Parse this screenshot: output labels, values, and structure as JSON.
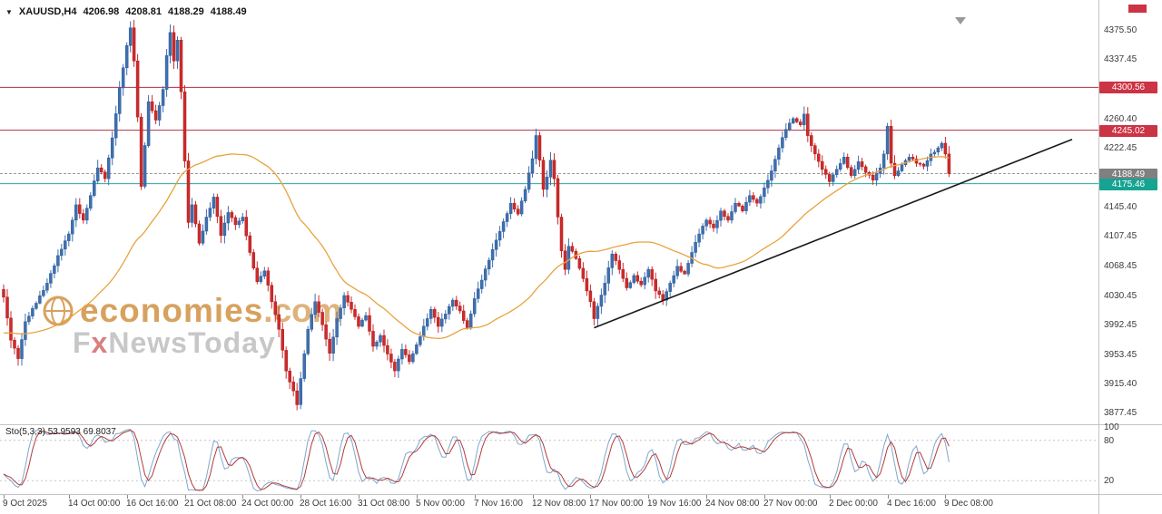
{
  "header": {
    "symbol": "XAUUSD,H4",
    "open": "4206.98",
    "high": "4208.81",
    "low": "4188.29",
    "close": "4188.49"
  },
  "watermark": {
    "brand": "economies",
    "brand_suffix": ".com",
    "tagline_prefix": "F",
    "tagline_x": "x",
    "tagline_rest": "NewsToday"
  },
  "indicator": {
    "name": "Sto(5,3,3)",
    "values": "53.9593 69.8037",
    "scale_labels": [
      100,
      80,
      20
    ],
    "dashed_levels": [
      80,
      20
    ]
  },
  "price_axis": {
    "labels": [
      {
        "text": "4375.50",
        "price": 4375.5
      },
      {
        "text": "4337.45",
        "price": 4337.45
      },
      {
        "text": "4260.40",
        "price": 4260.4
      },
      {
        "text": "4222.45",
        "price": 4222.45
      },
      {
        "text": "4145.40",
        "price": 4145.4
      },
      {
        "text": "4107.45",
        "price": 4107.45
      },
      {
        "text": "4068.45",
        "price": 4068.45
      },
      {
        "text": "4030.45",
        "price": 4030.45
      },
      {
        "text": "3992.45",
        "price": 3992.45
      },
      {
        "text": "3953.45",
        "price": 3953.45
      },
      {
        "text": "3915.40",
        "price": 3915.4
      },
      {
        "text": "3877.45",
        "price": 3877.45
      }
    ]
  },
  "price_lines": [
    {
      "price": 4300.56,
      "label": "4300.56",
      "line_color": "#b03048",
      "badge_color": "#cc3344",
      "dash": ""
    },
    {
      "price": 4245.02,
      "label": "4245.02",
      "line_color": "#b03048",
      "badge_color": "#cc3344",
      "dash": ""
    },
    {
      "price": 4188.49,
      "label": "4188.49",
      "line_color": "#9a9a9a",
      "badge_color": "#808080",
      "dash": "3,2"
    },
    {
      "price": 4175.46,
      "label": "4175.46",
      "line_color": "#2aa79b",
      "badge_color": "#17a392",
      "dash": ""
    }
  ],
  "time_axis": [
    {
      "label": "9 Oct 2025",
      "i": 0
    },
    {
      "label": "14 Oct 00:00",
      "i": 18
    },
    {
      "label": "16 Oct 16:00",
      "i": 34
    },
    {
      "label": "21 Oct 08:00",
      "i": 50
    },
    {
      "label": "24 Oct 00:00",
      "i": 66
    },
    {
      "label": "28 Oct 16:00",
      "i": 82
    },
    {
      "label": "31 Oct 08:00",
      "i": 98
    },
    {
      "label": "5 Nov 00:00",
      "i": 114
    },
    {
      "label": "7 Nov 16:00",
      "i": 130
    },
    {
      "label": "12 Nov 08:00",
      "i": 146
    },
    {
      "label": "17 Nov 00:00",
      "i": 162
    },
    {
      "label": "19 Nov 16:00",
      "i": 178
    },
    {
      "label": "24 Nov 08:00",
      "i": 194
    },
    {
      "label": "27 Nov 00:00",
      "i": 210
    },
    {
      "label": "2 Dec 00:00",
      "i": 228
    },
    {
      "label": "4 Dec 16:00",
      "i": 244
    },
    {
      "label": "9 Dec 08:00",
      "i": 260
    }
  ],
  "colors": {
    "up": "#3f6fae",
    "up_stroke": "#2f5d99",
    "down": "#cf2a2a",
    "down_stroke": "#a91f1f",
    "ma": "#e8a33d",
    "trend": "#1a1a1a",
    "sto_main": "#7fa8cc",
    "sto_signal": "#b23b3b",
    "level_dash": "#c4c4c4",
    "shift_marker": "#999999"
  },
  "chart_data": {
    "type": "candlestick",
    "symbol": "XAUUSD",
    "timeframe": "H4",
    "title": "XAUUSD H4 with SMA, Stochastic(5,3,3), horizontal levels 4300.56 / 4245.02 / 4175.46, bid 4188.49 and rising trendline",
    "last_ohlc": {
      "open": 4206.98,
      "high": 4208.81,
      "low": 4188.29,
      "close": 4188.49
    },
    "ylim": [
      3865,
      4393
    ],
    "candle_count": 262,
    "close_anchors": [
      [
        0,
        4028
      ],
      [
        2,
        3972
      ],
      [
        4,
        3948
      ],
      [
        6,
        3996
      ],
      [
        9,
        4020
      ],
      [
        12,
        4046
      ],
      [
        15,
        4082
      ],
      [
        18,
        4110
      ],
      [
        20,
        4148
      ],
      [
        22,
        4128
      ],
      [
        24,
        4160
      ],
      [
        26,
        4196
      ],
      [
        28,
        4182
      ],
      [
        30,
        4235
      ],
      [
        32,
        4300
      ],
      [
        34,
        4355
      ],
      [
        35,
        4378
      ],
      [
        36,
        4335
      ],
      [
        37,
        4262
      ],
      [
        38,
        4172
      ],
      [
        39,
        4225
      ],
      [
        40,
        4282
      ],
      [
        42,
        4258
      ],
      [
        44,
        4298
      ],
      [
        45,
        4342
      ],
      [
        46,
        4372
      ],
      [
        47,
        4335
      ],
      [
        48,
        4362
      ],
      [
        49,
        4295
      ],
      [
        50,
        4205
      ],
      [
        51,
        4125
      ],
      [
        52,
        4148
      ],
      [
        54,
        4098
      ],
      [
        56,
        4132
      ],
      [
        58,
        4158
      ],
      [
        60,
        4108
      ],
      [
        62,
        4138
      ],
      [
        64,
        4122
      ],
      [
        66,
        4132
      ],
      [
        68,
        4086
      ],
      [
        70,
        4048
      ],
      [
        72,
        4062
      ],
      [
        74,
        4022
      ],
      [
        76,
        3986
      ],
      [
        78,
        3932
      ],
      [
        80,
        3906
      ],
      [
        81,
        3888
      ],
      [
        82,
        3922
      ],
      [
        84,
        3986
      ],
      [
        86,
        4022
      ],
      [
        88,
        3992
      ],
      [
        90,
        3955
      ],
      [
        92,
        4000
      ],
      [
        94,
        4030
      ],
      [
        96,
        4012
      ],
      [
        98,
        3990
      ],
      [
        100,
        4004
      ],
      [
        102,
        3964
      ],
      [
        104,
        3978
      ],
      [
        106,
        3954
      ],
      [
        108,
        3932
      ],
      [
        110,
        3960
      ],
      [
        112,
        3944
      ],
      [
        114,
        3966
      ],
      [
        116,
        3990
      ],
      [
        118,
        4012
      ],
      [
        120,
        3990
      ],
      [
        122,
        4006
      ],
      [
        124,
        4024
      ],
      [
        126,
        4010
      ],
      [
        128,
        3988
      ],
      [
        130,
        4026
      ],
      [
        132,
        4050
      ],
      [
        134,
        4076
      ],
      [
        136,
        4102
      ],
      [
        138,
        4126
      ],
      [
        140,
        4150
      ],
      [
        142,
        4136
      ],
      [
        144,
        4168
      ],
      [
        146,
        4208
      ],
      [
        147,
        4238
      ],
      [
        148,
        4206
      ],
      [
        149,
        4168
      ],
      [
        150,
        4184
      ],
      [
        151,
        4206
      ],
      [
        152,
        4182
      ],
      [
        153,
        4132
      ],
      [
        154,
        4088
      ],
      [
        155,
        4064
      ],
      [
        156,
        4094
      ],
      [
        158,
        4078
      ],
      [
        160,
        4052
      ],
      [
        162,
        4022
      ],
      [
        163,
        4000
      ],
      [
        164,
        4016
      ],
      [
        166,
        4046
      ],
      [
        168,
        4084
      ],
      [
        170,
        4064
      ],
      [
        172,
        4040
      ],
      [
        174,
        4056
      ],
      [
        176,
        4044
      ],
      [
        178,
        4064
      ],
      [
        180,
        4036
      ],
      [
        182,
        4024
      ],
      [
        184,
        4046
      ],
      [
        186,
        4068
      ],
      [
        188,
        4058
      ],
      [
        190,
        4086
      ],
      [
        192,
        4110
      ],
      [
        194,
        4128
      ],
      [
        196,
        4118
      ],
      [
        198,
        4140
      ],
      [
        200,
        4128
      ],
      [
        202,
        4150
      ],
      [
        204,
        4140
      ],
      [
        206,
        4160
      ],
      [
        208,
        4150
      ],
      [
        210,
        4170
      ],
      [
        212,
        4192
      ],
      [
        214,
        4222
      ],
      [
        216,
        4246
      ],
      [
        218,
        4260
      ],
      [
        220,
        4252
      ],
      [
        221,
        4266
      ],
      [
        222,
        4238
      ],
      [
        224,
        4214
      ],
      [
        226,
        4194
      ],
      [
        228,
        4178
      ],
      [
        230,
        4194
      ],
      [
        232,
        4210
      ],
      [
        234,
        4186
      ],
      [
        236,
        4204
      ],
      [
        238,
        4190
      ],
      [
        240,
        4180
      ],
      [
        242,
        4196
      ],
      [
        243,
        4214
      ],
      [
        244,
        4250
      ],
      [
        245,
        4202
      ],
      [
        246,
        4186
      ],
      [
        248,
        4200
      ],
      [
        250,
        4210
      ],
      [
        252,
        4202
      ],
      [
        254,
        4198
      ],
      [
        256,
        4214
      ],
      [
        258,
        4222
      ],
      [
        259,
        4228
      ],
      [
        260,
        4214
      ],
      [
        261,
        4188.49
      ]
    ],
    "moving_average": {
      "type": "sma",
      "period": 45,
      "pre_seed": 3980
    },
    "trendline": {
      "i1": 163,
      "p1": 3988,
      "i2": 295,
      "p2": 4233
    },
    "horizontal_levels": [
      4300.56,
      4245.02,
      4188.49,
      4175.46
    ],
    "stochastic": {
      "label": "Sto(5,3,3)",
      "k_period": 5,
      "k_slowing": 3,
      "d_period": 3,
      "scale": [
        0,
        100
      ],
      "levels": [
        80,
        20
      ],
      "last_main": 53.9593,
      "last_signal": 69.8037
    }
  }
}
